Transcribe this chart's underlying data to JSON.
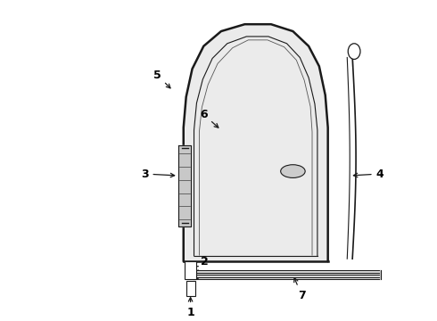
{
  "background_color": "#ffffff",
  "line_color": "#1a1a1a",
  "label_color": "#000000",
  "fig_width": 4.9,
  "fig_height": 3.6,
  "dpi": 100,
  "label_fontsize": 9
}
